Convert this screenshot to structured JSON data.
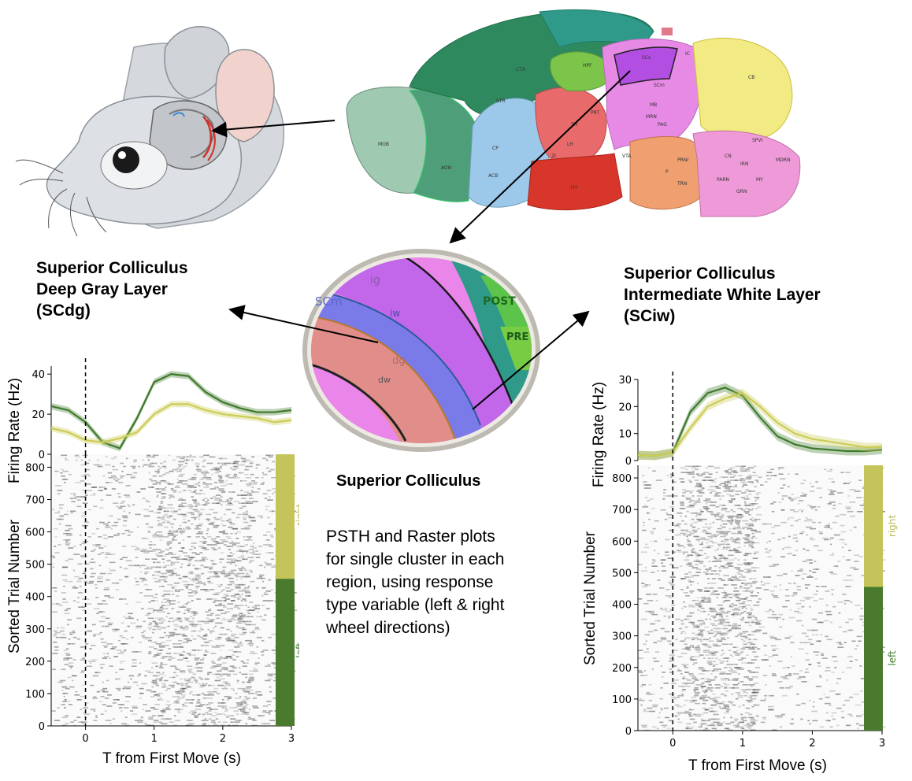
{
  "labels": {
    "left_heading": [
      "Superior Colliculus",
      "Deep Gray Layer",
      "(SCdg)"
    ],
    "right_heading": [
      "Superior Colliculus",
      "Intermediate White Layer",
      "(SCiw)"
    ],
    "center_title": "Superior Colliculus",
    "description": [
      "PSTH and Raster plots",
      "for single cluster in each",
      "region, using response",
      "type variable (left & right",
      "wheel directions)"
    ]
  },
  "brain": {
    "region_labels": [
      "CTX",
      "HPF",
      "CB",
      "MB",
      "TH",
      "HY",
      "STR",
      "CP",
      "ACB",
      "MOB",
      "AON",
      "P",
      "MY",
      "LH",
      "SCs",
      "SCm",
      "IC",
      "PAG",
      "MRN",
      "ZI",
      "VTA",
      "PRT",
      "PRNr",
      "TRN",
      "SPVI",
      "IRN",
      "CN",
      "MDRN",
      "GRN",
      "PARN"
    ]
  },
  "zoom": {
    "labels": [
      "ig",
      "SCm",
      "iw",
      "dg",
      "POST",
      "PRE",
      "dw"
    ]
  },
  "colors": {
    "left": "#4a7a2e",
    "right": "#c4c45a",
    "psth_left": "#3f7a2b",
    "psth_right": "#cccc55"
  },
  "panels": [
    {
      "id": "scdg",
      "ylabel_psth": "Firing Rate (Hz)",
      "ylabel_raster": "Sorted Trial Number",
      "xlabel": "T from First Move (s)",
      "psth_yticks": [
        "0",
        "20",
        "40"
      ],
      "raster_yticks": [
        "0",
        "100",
        "200",
        "300",
        "400",
        "500",
        "600",
        "700",
        "800"
      ],
      "xticks": [
        "0",
        "1",
        "2",
        "3"
      ],
      "side_labels": [
        "right",
        "left"
      ]
    },
    {
      "id": "sciw",
      "ylabel_psth": "Firing Rate (Hz)",
      "ylabel_raster": "Sorted Trial Number",
      "xlabel": "T from First Move (s)",
      "psth_yticks": [
        "0",
        "10",
        "20",
        "30"
      ],
      "raster_yticks": [
        "0",
        "100",
        "200",
        "300",
        "400",
        "500",
        "600",
        "700",
        "800"
      ],
      "xticks": [
        "0",
        "1",
        "2",
        "3"
      ],
      "side_labels": [
        "right",
        "left"
      ]
    }
  ],
  "chart_data": [
    {
      "type": "line",
      "title": "",
      "xlabel": "T from First Move (s)",
      "ylabel": "Firing Rate (Hz)",
      "xlim": [
        -0.5,
        3
      ],
      "ylim": [
        0,
        44
      ],
      "x": [
        -0.5,
        -0.25,
        0,
        0.25,
        0.5,
        0.75,
        1.0,
        1.25,
        1.5,
        1.75,
        2.0,
        2.25,
        2.5,
        2.75,
        3.0
      ],
      "series": [
        {
          "name": "left",
          "values": [
            24,
            22,
            16,
            6,
            3,
            18,
            36,
            40,
            39,
            31,
            26,
            23,
            21,
            21,
            22
          ]
        },
        {
          "name": "right",
          "values": [
            13,
            11,
            7,
            6,
            8,
            11,
            20,
            25,
            25,
            22,
            20,
            19,
            18,
            16,
            17
          ]
        }
      ]
    },
    {
      "type": "heatmap",
      "xlabel": "T from First Move (s)",
      "ylabel": "Sorted Trial Number",
      "xlim": [
        -0.5,
        3
      ],
      "ylim": [
        0,
        840
      ],
      "groups": [
        {
          "name": "right",
          "trials": [
            455,
            840
          ]
        },
        {
          "name": "left",
          "trials": [
            0,
            455
          ]
        }
      ]
    },
    {
      "type": "line",
      "title": "",
      "xlabel": "T from First Move (s)",
      "ylabel": "Firing Rate (Hz)",
      "xlim": [
        -0.5,
        3
      ],
      "ylim": [
        0,
        30
      ],
      "x": [
        -0.5,
        -0.25,
        0,
        0.25,
        0.5,
        0.75,
        1.0,
        1.25,
        1.5,
        1.75,
        2.0,
        2.25,
        2.5,
        2.75,
        3.0
      ],
      "series": [
        {
          "name": "left",
          "values": [
            2,
            1.8,
            3,
            18,
            25,
            27,
            24,
            16,
            9,
            6,
            4.5,
            4,
            3.5,
            3.5,
            4
          ]
        },
        {
          "name": "right",
          "values": [
            2,
            1.8,
            3,
            12,
            20,
            23,
            25,
            20,
            14,
            10,
            8,
            7,
            6,
            5,
            5
          ]
        }
      ]
    },
    {
      "type": "heatmap",
      "xlabel": "T from First Move (s)",
      "ylabel": "Sorted Trial Number",
      "xlim": [
        -0.5,
        3
      ],
      "ylim": [
        0,
        840
      ],
      "groups": [
        {
          "name": "right",
          "trials": [
            455,
            840
          ]
        },
        {
          "name": "left",
          "trials": [
            0,
            455
          ]
        }
      ]
    }
  ]
}
